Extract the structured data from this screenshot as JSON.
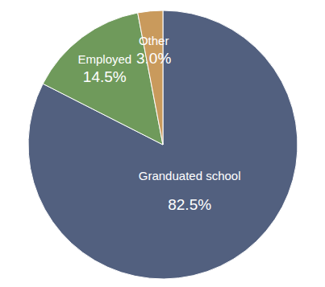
{
  "chart_data": {
    "type": "pie",
    "categories": [
      "Granduated school",
      "Employed",
      "Other"
    ],
    "values": [
      82.5,
      14.5,
      3.0
    ],
    "value_labels": [
      "82.5%",
      "14.5%",
      "3.0%"
    ],
    "colors": [
      "#52607f",
      "#6f9a5b",
      "#c99a5c"
    ],
    "data_labels": true
  }
}
